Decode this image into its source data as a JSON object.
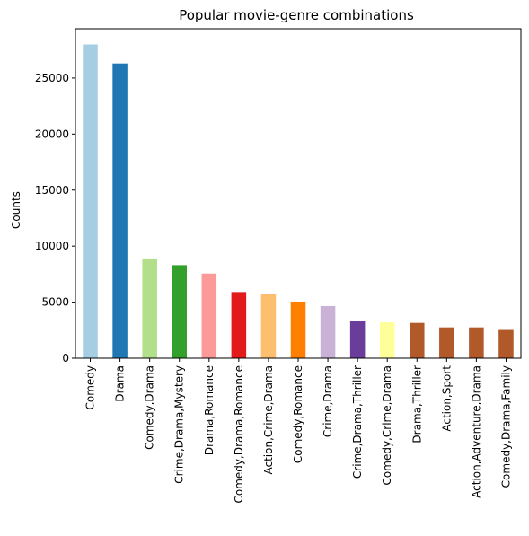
{
  "chart_data": {
    "type": "bar",
    "title": "Popular movie-genre combinations",
    "xlabel": "",
    "ylabel": "Counts",
    "ylim": [
      0,
      28000
    ],
    "yticks": [
      0,
      5000,
      10000,
      15000,
      20000,
      25000
    ],
    "grid": false,
    "categories": [
      "Comedy",
      "Drama",
      "Comedy,Drama",
      "Crime,Drama,Mystery",
      "Drama,Romance",
      "Comedy,Drama,Romance",
      "Action,Crime,Drama",
      "Comedy,Romance",
      "Crime,Drama",
      "Crime,Drama,Thriller",
      "Comedy,Crime,Drama",
      "Drama,Thriller",
      "Action,Sport",
      "Action,Adventure,Drama",
      "Comedy,Drama,Family"
    ],
    "values": [
      28000,
      26300,
      8900,
      8300,
      7550,
      5900,
      5750,
      5050,
      4650,
      3300,
      3200,
      3150,
      2750,
      2750,
      2600
    ],
    "colors": [
      "#a6cee3",
      "#1f78b4",
      "#b2df8a",
      "#33a02c",
      "#fb9a99",
      "#e31a1c",
      "#fdbf6f",
      "#ff7f00",
      "#cab2d6",
      "#6a3d9a",
      "#ffff99",
      "#b15928",
      "#b15928",
      "#b15928",
      "#b15928"
    ]
  }
}
